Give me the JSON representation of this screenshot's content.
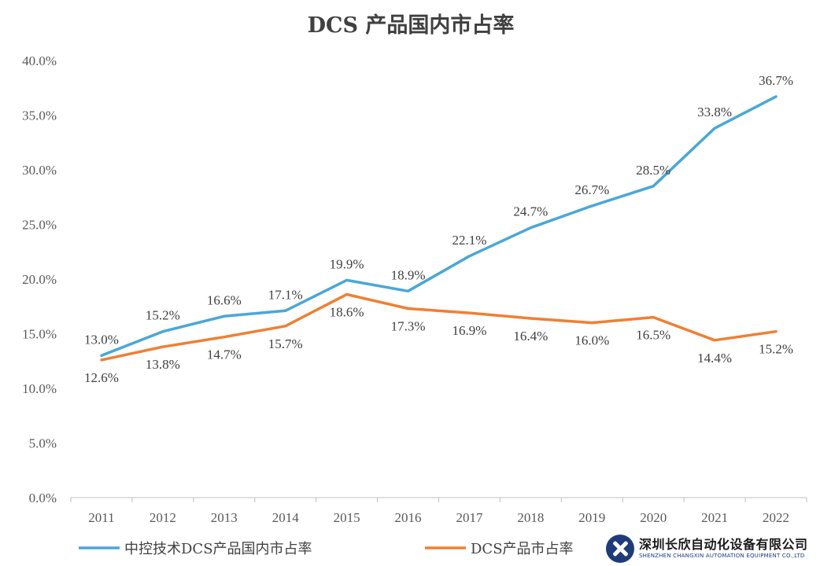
{
  "chart_data": {
    "type": "line",
    "title": "DCS 产品国内市占率",
    "categories": [
      "2011",
      "2012",
      "2013",
      "2014",
      "2015",
      "2016",
      "2017",
      "2018",
      "2019",
      "2020",
      "2021",
      "2022"
    ],
    "ylim": [
      0,
      40
    ],
    "yticks": [
      "0.0%",
      "5.0%",
      "10.0%",
      "15.0%",
      "20.0%",
      "25.0%",
      "30.0%",
      "35.0%",
      "40.0%"
    ],
    "grid": false,
    "legend_position": "bottom",
    "series": [
      {
        "name": "中控技术DCS产品国内市占率",
        "color": "#4aa7d8",
        "values": [
          13.0,
          15.2,
          16.6,
          17.1,
          19.9,
          18.9,
          22.1,
          24.7,
          26.7,
          28.5,
          33.8,
          36.7
        ],
        "labels": [
          "13.0%",
          "15.2%",
          "16.6%",
          "17.1%",
          "19.9%",
          "18.9%",
          "22.1%",
          "24.7%",
          "26.7%",
          "28.5%",
          "33.8%",
          "36.7%"
        ]
      },
      {
        "name": "DCS产品市占率",
        "color": "#f07f32",
        "values": [
          12.6,
          13.8,
          14.7,
          15.7,
          18.6,
          17.3,
          16.9,
          16.4,
          16.0,
          16.5,
          14.4,
          15.2
        ],
        "labels": [
          "12.6%",
          "13.8%",
          "14.7%",
          "15.7%",
          "18.6%",
          "17.3%",
          "16.9%",
          "16.4%",
          "16.0%",
          "16.5%",
          "14.4%",
          "15.2%"
        ]
      }
    ]
  },
  "watermark": {
    "logo_icon": "changxin-logo-icon",
    "name": "深圳长欣自动化设备有限公司",
    "english": "SHENZHEN CHANGXIN AUTOMATION EQUIPMENT CO.,LTD"
  }
}
